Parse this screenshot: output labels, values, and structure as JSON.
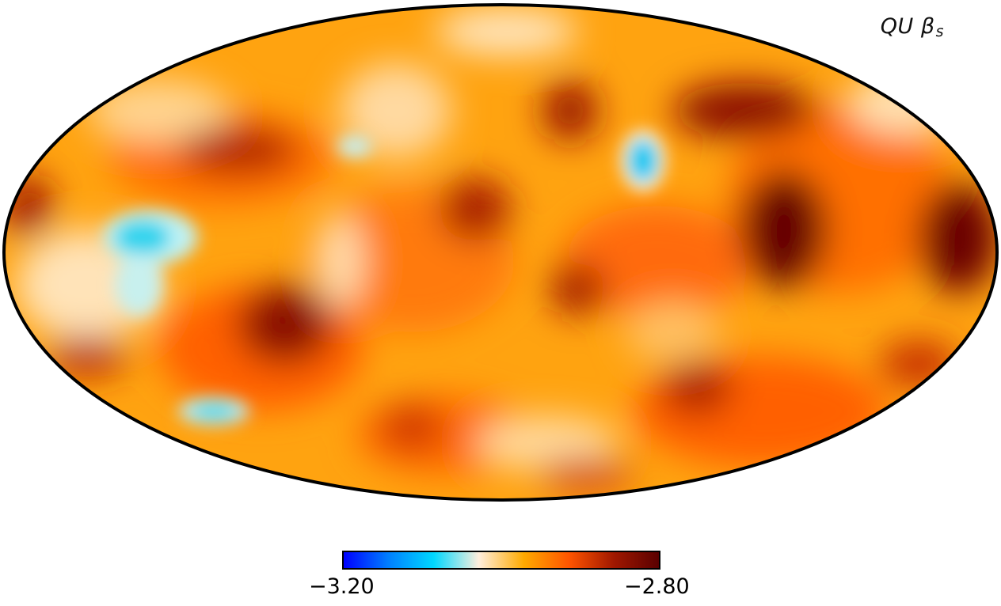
{
  "map": {
    "projection": "mollweide",
    "label_main": "QU β",
    "label_sub": "s",
    "colormap_colors": [
      "#0000ff",
      "#0080ff",
      "#00d8ff",
      "#ffeedd",
      "#ffaa00",
      "#ff5500",
      "#a01800",
      "#5a0000"
    ]
  },
  "colorbar": {
    "min_label": "−3.20",
    "max_label": "−2.80",
    "min": -3.2,
    "max": -2.8
  }
}
